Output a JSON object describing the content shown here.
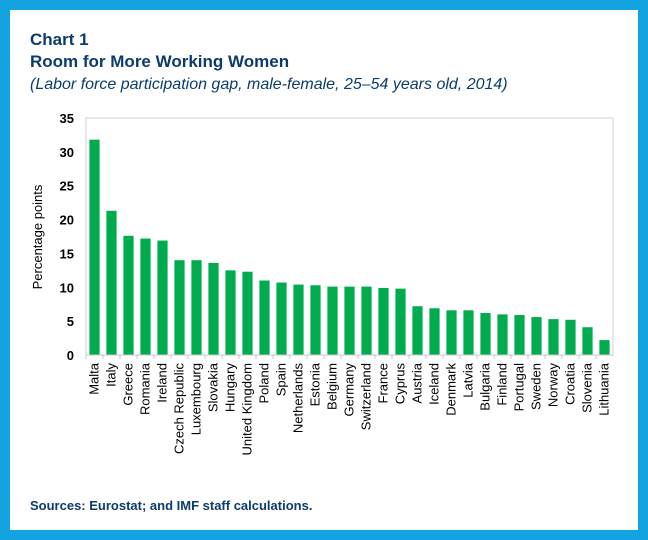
{
  "header": {
    "chart_number": "Chart 1",
    "title": "Room for More Working Women",
    "subtitle": "(Labor force participation gap, male-female, 25–54 years old, 2014)"
  },
  "footer": {
    "sources": "Sources: Eurostat; and IMF staff calculations."
  },
  "colors": {
    "bar": "#00ac4e",
    "frame": "#12a3e0",
    "title": "#0c3b6e"
  },
  "chart_data": {
    "type": "bar",
    "title": "Room for More Working Women",
    "xlabel": "",
    "ylabel": "Percentage points",
    "ylim": [
      0,
      35
    ],
    "yticks": [
      0,
      5,
      10,
      15,
      20,
      25,
      30,
      35
    ],
    "grid": false,
    "categories": [
      "Malta",
      "Italy",
      "Greece",
      "Romania",
      "Ireland",
      "Czech Republic",
      "Luxembourg",
      "Slovakia",
      "Hungary",
      "United Kingdom",
      "Poland",
      "Spain",
      "Netherlands",
      "Estonia",
      "Belgium",
      "Germany",
      "Switzerland",
      "France",
      "Cyprus",
      "Austria",
      "Iceland",
      "Denmark",
      "Latvia",
      "Bulgaria",
      "Finland",
      "Portugal",
      "Sweden",
      "Norway",
      "Croatia",
      "Slovenia",
      "Lithuania"
    ],
    "values": [
      31.8,
      21.3,
      17.6,
      17.2,
      16.9,
      14.0,
      14.0,
      13.6,
      12.5,
      12.3,
      11.0,
      10.7,
      10.4,
      10.3,
      10.1,
      10.1,
      10.1,
      9.9,
      9.8,
      7.2,
      6.9,
      6.6,
      6.6,
      6.2,
      6.0,
      5.9,
      5.6,
      5.3,
      5.2,
      4.1,
      2.2
    ]
  }
}
